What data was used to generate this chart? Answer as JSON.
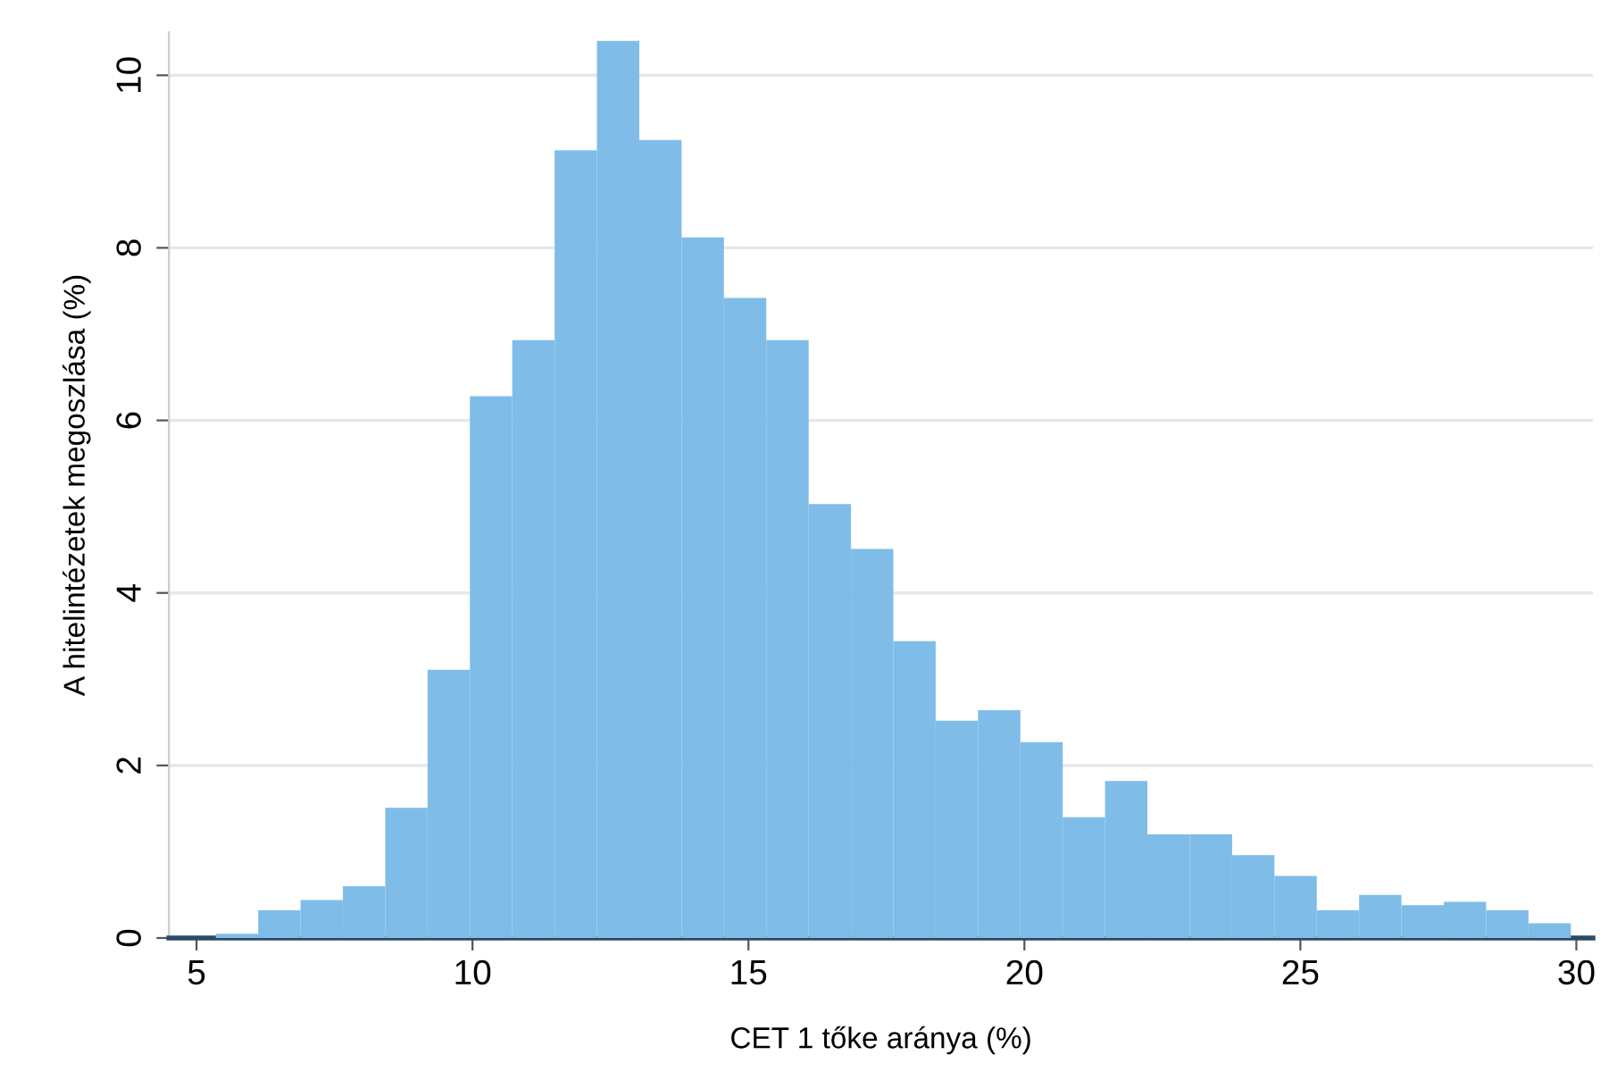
{
  "chart_data": {
    "type": "histogram",
    "xlabel": "CET 1 tőke aránya (%)",
    "ylabel": "A hitelintézetek megoszlása (%)",
    "bins": [
      5.35,
      6.117,
      6.884,
      7.652,
      8.419,
      9.186,
      9.953,
      10.72,
      11.488,
      12.255,
      13.022,
      13.789,
      14.556,
      15.323,
      16.091,
      16.858,
      17.625,
      18.392,
      19.159,
      19.927,
      20.694,
      21.461,
      22.228,
      22.995,
      23.763,
      24.53,
      25.297,
      26.064,
      26.831,
      27.598,
      28.366,
      29.133,
      29.9
    ],
    "values": [
      0.05,
      0.32,
      0.44,
      0.6,
      1.51,
      3.11,
      6.28,
      6.93,
      9.13,
      10.4,
      9.25,
      8.12,
      7.42,
      6.93,
      5.03,
      4.51,
      3.44,
      2.52,
      2.64,
      2.27,
      1.4,
      1.82,
      1.2,
      1.2,
      0.96,
      0.72,
      0.32,
      0.5,
      0.38,
      0.42,
      0.32,
      0.17
    ],
    "color": "#7fbde8",
    "xlim": [
      4.5,
      30.3
    ],
    "ylim": [
      0,
      10.5
    ],
    "xticks": [
      5,
      10,
      15,
      20,
      25,
      30
    ],
    "yticks": [
      0,
      2,
      4,
      6,
      8,
      10
    ],
    "grid": "y"
  }
}
